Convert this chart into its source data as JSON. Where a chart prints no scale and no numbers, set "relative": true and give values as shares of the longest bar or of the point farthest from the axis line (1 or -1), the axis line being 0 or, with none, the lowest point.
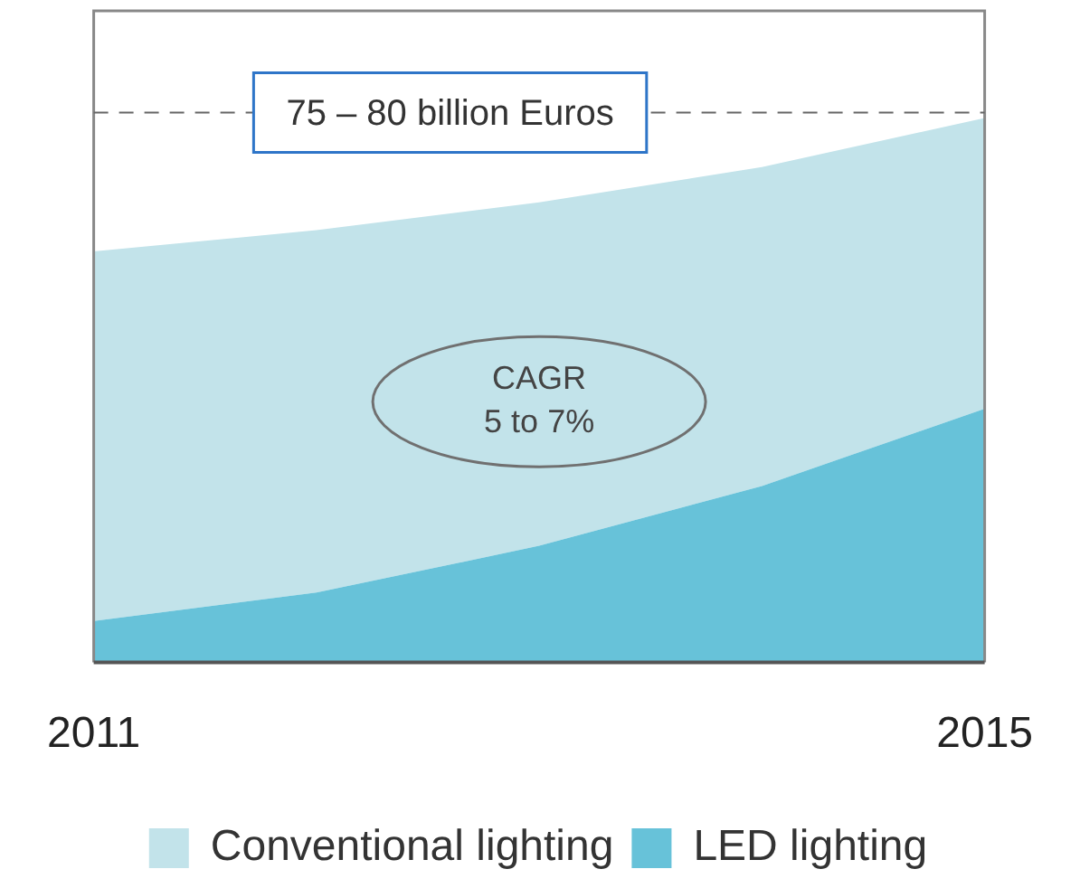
{
  "chart_data": {
    "type": "area",
    "relative": true,
    "stacked": true,
    "categories": [
      "2011",
      null,
      null,
      null,
      "2015"
    ],
    "series": [
      {
        "name": "LED lighting",
        "color": "#67c2d9",
        "values": [
          0.076,
          0.128,
          0.214,
          0.324,
          0.466
        ]
      },
      {
        "name": "Conventional lighting",
        "color": "#c2e3ea",
        "values": [
          0.679,
          0.666,
          0.631,
          0.586,
          0.534
        ]
      }
    ],
    "ref_lines": [
      {
        "axis": "y",
        "value": 1.01,
        "label": "75 – 80 billion Euros",
        "color": "#666666",
        "line_style": "dashed"
      }
    ],
    "annotations": [
      "CAGR\n5 to 7%"
    ],
    "legend": "bottom",
    "grid": false,
    "marker": "none"
  }
}
